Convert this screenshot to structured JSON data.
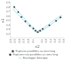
{
  "chart_data": {
    "type": "scatter",
    "xlabel": "ε2",
    "ylabel": "ε1",
    "xlim": [
      -0.6,
      0.6
    ],
    "ylim": [
      0.1,
      0.9
    ],
    "xticks": [
      -0.6,
      -0.5,
      -0.4,
      -0.3,
      -0.2,
      -0.1,
      0.1,
      0.2,
      0.3,
      0.4,
      0.5,
      0.6
    ],
    "yticks": [
      0.2,
      0.3,
      0.4,
      0.5,
      0.6,
      0.7,
      0.8,
      0.9
    ],
    "grid": false,
    "legend": "bottom",
    "series": [
      {
        "name": "Ruptures parallèles au sens long",
        "type": "scatter",
        "marker": "square",
        "color": "#444444",
        "x": [
          -0.52,
          -0.43,
          -0.36,
          -0.27,
          -0.17,
          -0.09
        ],
        "values": [
          0.8,
          0.69,
          0.58,
          0.48,
          0.38,
          0.32
        ]
      },
      {
        "name": "Enveloppe théorique",
        "type": "line",
        "line_style": "solid",
        "color": "#99DDEE",
        "x": [
          -0.55,
          -0.45,
          -0.35,
          -0.25,
          -0.15,
          -0.05,
          0.0,
          0.05,
          0.15,
          0.25,
          0.35,
          0.45,
          0.55
        ],
        "values": [
          0.83,
          0.72,
          0.61,
          0.5,
          0.39,
          0.29,
          0.25,
          0.28,
          0.34,
          0.41,
          0.49,
          0.56,
          0.62
        ]
      },
      {
        "name": "Ruptures non parallèles au sens long",
        "type": "scatter",
        "marker": "diamond",
        "color": "#444444",
        "x": [
          0.12,
          0.27,
          0.42,
          0.52
        ],
        "values": [
          0.31,
          0.39,
          0.49,
          0.57
        ]
      },
      {
        "type": "line",
        "line_style": "solid",
        "color": "#99DDEE",
        "x": [
          -0.55,
          -0.45,
          -0.35,
          -0.25,
          -0.15,
          -0.05,
          0.0,
          0.05,
          0.15,
          0.25,
          0.35,
          0.45,
          0.55
        ],
        "values": [
          0.76,
          0.65,
          0.55,
          0.45,
          0.35,
          0.25,
          0.22,
          0.24,
          0.3,
          0.37,
          0.44,
          0.52,
          0.58
        ]
      },
      {
        "type": "scatter",
        "marker": "square",
        "color": "#444444",
        "x": [
          -0.04,
          0.01,
          0.06
        ],
        "values": [
          0.27,
          0.24,
          0.27
        ]
      }
    ]
  }
}
